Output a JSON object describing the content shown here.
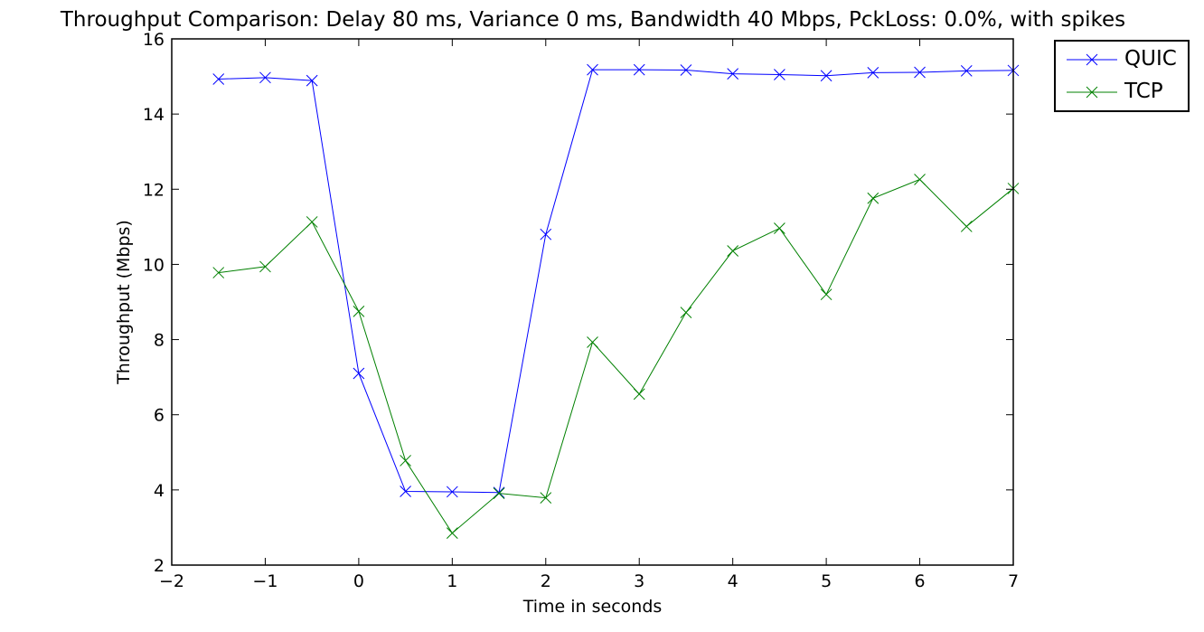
{
  "chart_data": {
    "type": "line",
    "title": "Throughput Comparison: Delay 80 ms, Variance 0 ms, Bandwidth 40 Mbps, PckLoss: 0.0%, with spikes",
    "xlabel": "Time in seconds",
    "ylabel": "Throughput (Mbps)",
    "xlim": [
      -2,
      7
    ],
    "ylim": [
      2,
      16
    ],
    "xticks": [
      -2,
      -1,
      0,
      1,
      2,
      3,
      4,
      5,
      6,
      7
    ],
    "xtick_labels": [
      "−2",
      "−1",
      "0",
      "1",
      "2",
      "3",
      "4",
      "5",
      "6",
      "7"
    ],
    "yticks": [
      2,
      4,
      6,
      8,
      10,
      12,
      14,
      16
    ],
    "ytick_labels": [
      "2",
      "4",
      "6",
      "8",
      "10",
      "12",
      "14",
      "16"
    ],
    "grid": false,
    "legend_position": "outside-top-right",
    "marker": "x",
    "x": [
      -1.5,
      -1,
      -0.5,
      0,
      0.5,
      1,
      1.5,
      2,
      2.5,
      3,
      3.5,
      4,
      4.5,
      5,
      5.5,
      6,
      6.5,
      7
    ],
    "series": [
      {
        "name": "QUIC",
        "color": "#0000ff",
        "values": [
          14.93,
          14.97,
          14.89,
          7.1,
          3.96,
          3.95,
          3.93,
          10.8,
          15.18,
          15.18,
          15.17,
          15.07,
          15.05,
          15.02,
          15.1,
          15.11,
          15.15,
          15.16
        ]
      },
      {
        "name": "TCP",
        "color": "#008000",
        "values": [
          9.78,
          9.94,
          11.13,
          8.75,
          4.78,
          2.85,
          3.91,
          3.79,
          7.93,
          6.55,
          8.72,
          10.36,
          10.96,
          9.2,
          11.76,
          12.26,
          11.01,
          12.02
        ]
      }
    ]
  }
}
